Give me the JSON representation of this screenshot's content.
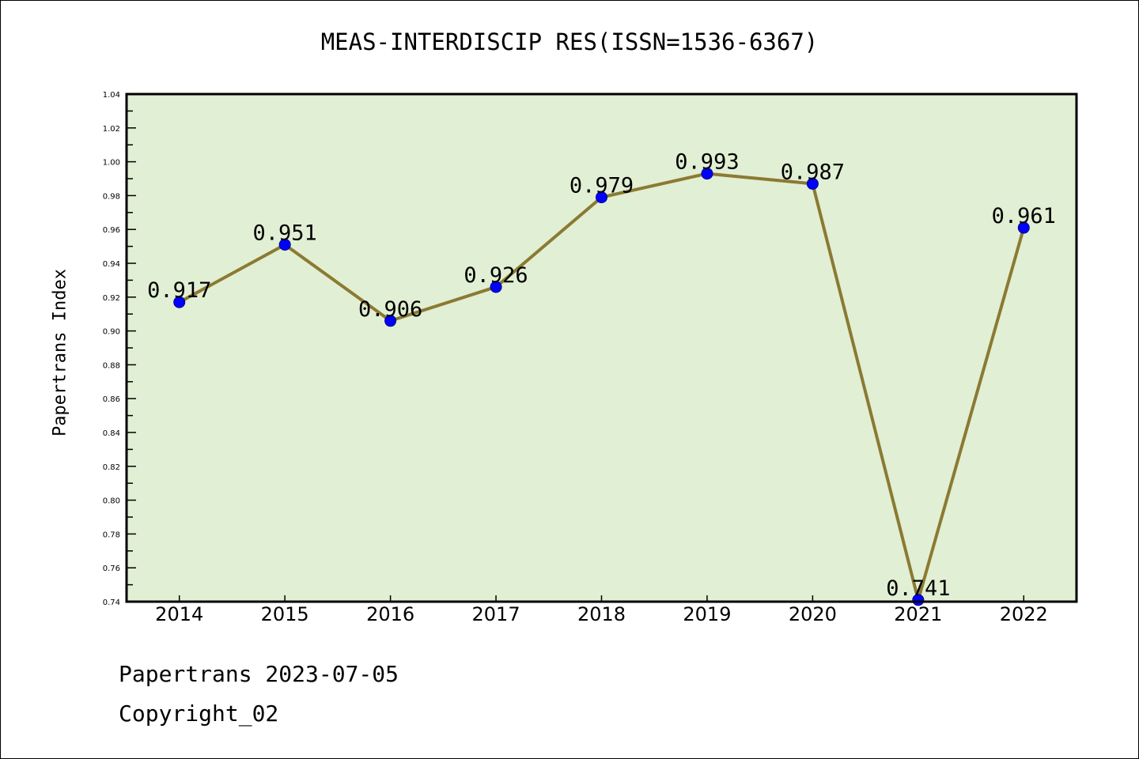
{
  "chart_data": {
    "type": "line",
    "title": "MEAS-INTERDISCIP RES(ISSN=1536-6367)",
    "xlabel": "",
    "ylabel": "Papertrans Index",
    "categories": [
      "2014",
      "2015",
      "2016",
      "2017",
      "2018",
      "2019",
      "2020",
      "2021",
      "2022"
    ],
    "values": [
      0.917,
      0.951,
      0.906,
      0.926,
      0.979,
      0.993,
      0.987,
      0.741,
      0.961
    ],
    "data_labels": [
      "0.917",
      "0.951",
      "0.906",
      "0.926",
      "0.979",
      "0.993",
      "0.987",
      "0.741",
      "0.961"
    ],
    "ylim": [
      0.74,
      1.04
    ],
    "yticks": [
      "0.74",
      "0.76",
      "0.78",
      "0.80",
      "0.82",
      "0.84",
      "0.86",
      "0.88",
      "0.90",
      "0.92",
      "0.94",
      "0.96",
      "0.98",
      "1.00",
      "1.02",
      "1.04"
    ],
    "grid": false,
    "legend": "none",
    "colors": {
      "background": "#e1efd4",
      "line": "#8b7a32",
      "marker": "#0000ff"
    }
  },
  "footer": {
    "line1": "Papertrans 2023-07-05",
    "line2": "Copyright_02"
  }
}
